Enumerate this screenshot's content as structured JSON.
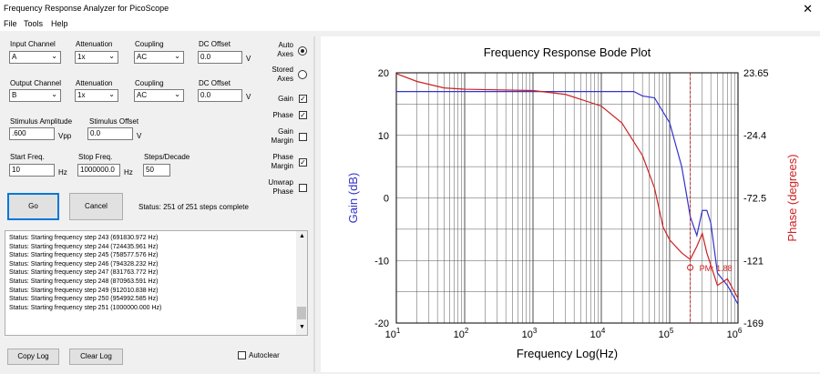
{
  "window": {
    "title": "Frequency Response Analyzer for PicoScope",
    "close_glyph": "✕"
  },
  "menu": [
    "File",
    "Tools",
    "Help"
  ],
  "input": {
    "channel_label": "Input Channel",
    "channel": "A",
    "attenuation_label": "Attenuation",
    "attenuation": "1x",
    "coupling_label": "Coupling",
    "coupling": "AC",
    "dc_offset_label": "DC Offset",
    "dc_offset": "0.0",
    "dc_unit": "V"
  },
  "output": {
    "channel_label": "Output Channel",
    "channel": "B",
    "attenuation_label": "Attenuation",
    "attenuation": "1x",
    "coupling_label": "Coupling",
    "coupling": "AC",
    "dc_offset_label": "DC Offset",
    "dc_offset": "0.0",
    "dc_unit": "V"
  },
  "stimulus": {
    "amplitude_label": "Stimulus Amplitude",
    "amplitude": ".600",
    "amplitude_unit": "Vpp",
    "offset_label": "Stimulus Offset",
    "offset": "0.0",
    "offset_unit": "V"
  },
  "sweep": {
    "start_label": "Start Freq.",
    "start": "10",
    "start_unit": "Hz",
    "stop_label": "Stop Freq.",
    "stop": "1000000.0",
    "stop_unit": "Hz",
    "steps_label": "Steps/Decade",
    "steps": "50"
  },
  "buttons": {
    "go": "Go",
    "cancel": "Cancel",
    "copy_log": "Copy Log",
    "clear_log": "Clear Log"
  },
  "status": "Status:  251 of 251 steps complete",
  "autoclear_label": "Autoclear",
  "options": {
    "auto_axes": [
      "Auto",
      "Axes"
    ],
    "stored_axes": [
      "Stored",
      "Axes"
    ],
    "gain": [
      "Gain"
    ],
    "phase": [
      "Phase"
    ],
    "gain_margin": [
      "Gain",
      "Margin"
    ],
    "phase_margin": [
      "Phase",
      "Margin"
    ],
    "unwrap_phase": [
      "Unwrap",
      "Phase"
    ]
  },
  "log_lines": [
    "Status: Starting frequency step 243 (691830.972 Hz)",
    "Status: Starting frequency step 244 (724435.961 Hz)",
    "Status: Starting frequency step 245 (758577.576 Hz)",
    "Status: Starting frequency step 246 (794328.232 Hz)",
    "Status: Starting frequency step 247 (831763.772 Hz)",
    "Status: Starting frequency step 248 (870963.591 Hz)",
    "Status: Starting frequency step 249 (912010.838 Hz)",
    "Status: Starting frequency step 250 (954992.585 Hz)",
    "Status: Starting frequency step 251 (1000000.000 Hz)"
  ],
  "chart_data": {
    "type": "line",
    "title": "Frequency Response Bode Plot",
    "xlabel": "Frequency Log(Hz)",
    "ylabel": "Gain (dB)",
    "y2label": "Phase (degrees)",
    "xscale": "log",
    "xlim": [
      10,
      1000000
    ],
    "ylim": [
      -20,
      20
    ],
    "y2lim": [
      -169,
      23.65
    ],
    "x_ticks": [
      10,
      100,
      1000,
      10000,
      100000,
      1000000
    ],
    "y_ticks": [
      20,
      10,
      0,
      -10,
      -20
    ],
    "y2_ticks": [
      "23.65",
      "-24.4",
      "-72.5",
      "-121",
      "-169"
    ],
    "grid": true,
    "colors": {
      "gain": "#3333cc",
      "phase": "#cc2222",
      "marker": "#cc2222"
    },
    "series": [
      {
        "name": "Gain (dB)",
        "x": [
          10,
          100,
          1000,
          10000,
          30000,
          40000,
          60000,
          100000,
          150000,
          180000,
          200000,
          250000,
          300000,
          350000,
          400000,
          500000,
          700000,
          1000000
        ],
        "values": [
          17,
          17,
          17,
          17,
          17,
          16.3,
          16,
          12,
          5,
          0,
          -3,
          -6,
          -2,
          -2,
          -4,
          -12,
          -14,
          -17
        ]
      },
      {
        "name": "Phase (degrees)",
        "x": [
          10,
          20,
          50,
          100,
          1000,
          3000,
          10000,
          20000,
          40000,
          60000,
          80000,
          100000,
          150000,
          200000,
          250000,
          300000,
          350000,
          500000,
          700000,
          1000000
        ],
        "values": [
          23,
          17,
          12,
          11,
          10,
          7,
          -2,
          -15,
          -40,
          -65,
          -95,
          -105,
          -115,
          -120,
          -110,
          -100,
          -115,
          -140,
          -135,
          -150
        ]
      }
    ],
    "annotation": {
      "text": "PM: 1.88",
      "x": 200000,
      "y2": -126.3
    }
  }
}
